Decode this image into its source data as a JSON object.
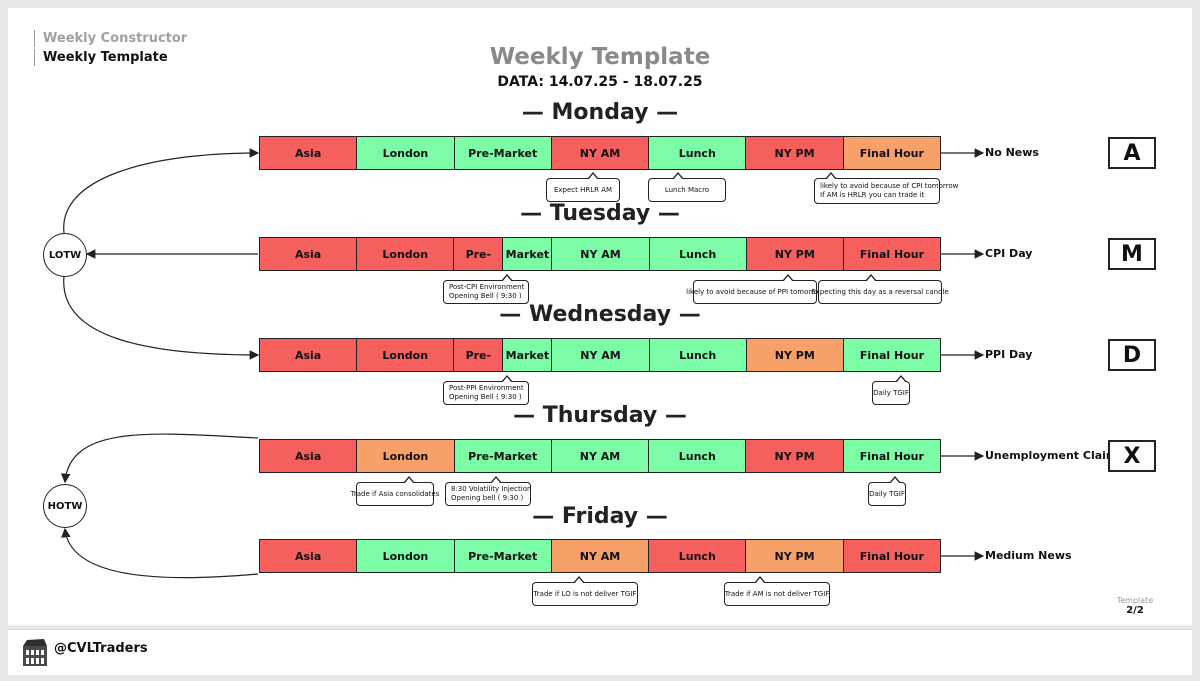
{
  "breadcrumb": {
    "parent": "Weekly Constructor",
    "current": "Weekly Template"
  },
  "title": "Weekly Template",
  "date_range": "DATA: 14.07.25 - 18.07.25",
  "days": [
    {
      "heading": "— Monday —",
      "sessions": [
        {
          "label": "Asia",
          "color": "red"
        },
        {
          "label": "London",
          "color": "green"
        },
        {
          "label": "Pre-Market",
          "color": "green"
        },
        {
          "label": "NY AM",
          "color": "red"
        },
        {
          "label": "Lunch",
          "color": "green"
        },
        {
          "label": "NY PM",
          "color": "red"
        },
        {
          "label": "Final Hour",
          "color": "orange"
        }
      ],
      "notes": [
        {
          "lines": [
            "Expect HRLR AM"
          ]
        },
        {
          "lines": [
            "Lunch Macro"
          ]
        },
        {
          "lines": [
            "likely to avoid because of CPI tomorrow",
            "If AM is HRLR you can trade it"
          ]
        }
      ],
      "news": "No News",
      "letter": "A"
    },
    {
      "heading": "— Tuesday —",
      "sessions": [
        {
          "label": "Asia",
          "color": "red"
        },
        {
          "label": "London",
          "color": "red"
        },
        {
          "label": "Pre-",
          "color": "red"
        },
        {
          "label": "Market",
          "color": "green"
        },
        {
          "label": "NY AM",
          "color": "green"
        },
        {
          "label": "Lunch",
          "color": "green"
        },
        {
          "label": "NY PM",
          "color": "red"
        },
        {
          "label": "Final Hour",
          "color": "red"
        }
      ],
      "notes": [
        {
          "lines": [
            "Post-CPI Environment",
            "Opening Bell ( 9:30 )"
          ]
        },
        {
          "lines": [
            "likely to avoid because of PPI tomorrow"
          ]
        },
        {
          "lines": [
            "Expecting this day as a reversal candle"
          ]
        }
      ],
      "news": "CPI Day",
      "letter": "M"
    },
    {
      "heading": "— Wednesday —",
      "sessions": [
        {
          "label": "Asia",
          "color": "red"
        },
        {
          "label": "London",
          "color": "red"
        },
        {
          "label": "Pre-",
          "color": "red"
        },
        {
          "label": "Market",
          "color": "green"
        },
        {
          "label": "NY AM",
          "color": "green"
        },
        {
          "label": "Lunch",
          "color": "green"
        },
        {
          "label": "NY PM",
          "color": "orange"
        },
        {
          "label": "Final Hour",
          "color": "green"
        }
      ],
      "notes": [
        {
          "lines": [
            "Post-PPI Environment",
            "Opening Bell ( 9:30 )"
          ]
        },
        {
          "lines": [
            "Daily TGIF"
          ]
        }
      ],
      "news": "PPI Day",
      "letter": "D"
    },
    {
      "heading": "— Thursday —",
      "sessions": [
        {
          "label": "Asia",
          "color": "red"
        },
        {
          "label": "London",
          "color": "orange"
        },
        {
          "label": "Pre-Market",
          "color": "green"
        },
        {
          "label": "NY AM",
          "color": "green"
        },
        {
          "label": "Lunch",
          "color": "green"
        },
        {
          "label": "NY PM",
          "color": "red"
        },
        {
          "label": "Final Hour",
          "color": "green"
        }
      ],
      "notes": [
        {
          "lines": [
            "Trade if Asia consolidates"
          ]
        },
        {
          "lines": [
            "8:30 Volatility Injection",
            "Opening bell ( 9:30 )"
          ]
        },
        {
          "lines": [
            "Daily TGIF"
          ]
        }
      ],
      "news": "Unemployment Claims",
      "letter": "X"
    },
    {
      "heading": "— Friday —",
      "sessions": [
        {
          "label": "Asia",
          "color": "red"
        },
        {
          "label": "London",
          "color": "green"
        },
        {
          "label": "Pre-Market",
          "color": "green"
        },
        {
          "label": "NY AM",
          "color": "orange"
        },
        {
          "label": "Lunch",
          "color": "red"
        },
        {
          "label": "NY PM",
          "color": "orange"
        },
        {
          "label": "Final Hour",
          "color": "red"
        }
      ],
      "notes": [
        {
          "lines": [
            "Trade if LO is not deliver TGIF"
          ]
        },
        {
          "lines": [
            "Trade if AM is not deliver TGIF"
          ]
        }
      ],
      "news": "Medium News",
      "letter": ""
    }
  ],
  "circles": {
    "lotw": "LOTW",
    "hotw": "HOTW"
  },
  "page_indicator": {
    "label": "Template",
    "number": "2/2"
  },
  "footer": {
    "handle": "@CVLTraders",
    "logo_icon": "colosseum-icon"
  },
  "colors": {
    "red": "#f5605f",
    "green": "#7cfca6",
    "orange": "#f7a06a"
  }
}
